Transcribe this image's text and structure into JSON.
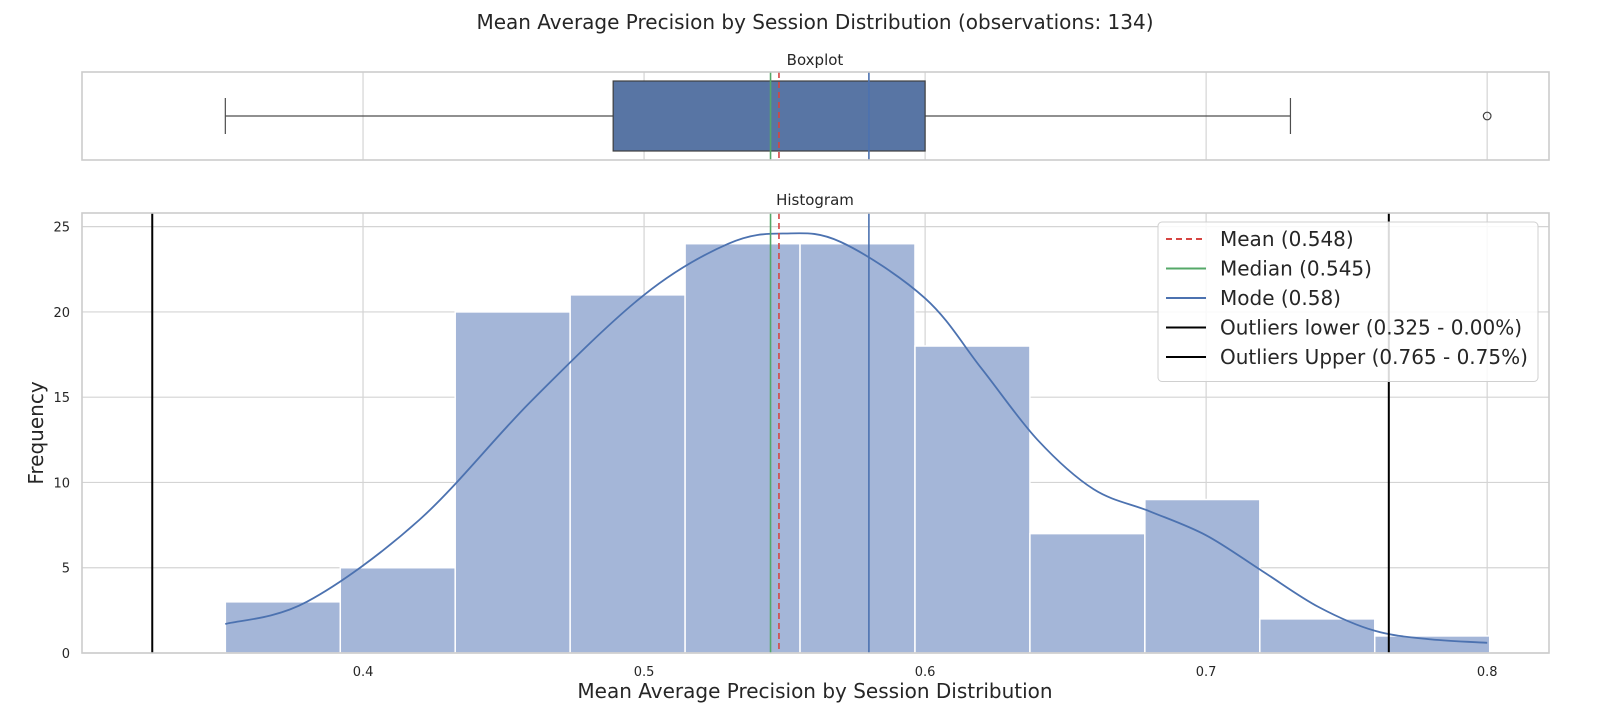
{
  "chart_data": [
    {
      "type": "boxplot",
      "title": "Boxplot",
      "orientation": "horizontal",
      "whisker_low": 0.351,
      "q1": 0.489,
      "median": 0.545,
      "q3": 0.6,
      "whisker_high": 0.73,
      "fliers": [
        0.8
      ],
      "mean": 0.548,
      "mode": 0.58,
      "xlim": [
        0.3,
        0.822
      ],
      "grid": true
    },
    {
      "type": "histogram",
      "title": "Histogram",
      "suptitle": "Mean Average Precision by Session Distribution (observations: 134)",
      "xlabel": "Mean Average Precision by Session Distribution",
      "ylabel": "Frequency",
      "xlim": [
        0.3,
        0.822
      ],
      "ylim": [
        0,
        25.8
      ],
      "x_ticks": [
        "0.4",
        "0.5",
        "0.6",
        "0.7",
        "0.8"
      ],
      "y_ticks": [
        "0",
        "5",
        "10",
        "15",
        "20",
        "25"
      ],
      "bin_edges": [
        0.351,
        0.3919,
        0.4328,
        0.4737,
        0.5146,
        0.5555,
        0.5964,
        0.6373,
        0.6782,
        0.7191,
        0.76,
        0.8009
      ],
      "values": [
        3,
        5,
        20,
        21,
        24,
        24,
        18,
        7,
        9,
        2,
        1
      ],
      "kde": {
        "x": [
          0.351,
          0.38,
          0.42,
          0.46,
          0.5,
          0.53,
          0.55,
          0.57,
          0.6,
          0.62,
          0.64,
          0.66,
          0.68,
          0.7,
          0.72,
          0.74,
          0.76,
          0.78,
          0.8
        ],
        "y": [
          1.7,
          3.0,
          7.8,
          14.8,
          21.0,
          24.0,
          24.6,
          24.1,
          20.8,
          16.7,
          12.5,
          9.6,
          8.3,
          6.9,
          4.8,
          2.7,
          1.3,
          0.8,
          0.6
        ]
      },
      "vlines": [
        {
          "label": "Mean (0.548)",
          "x": 0.548,
          "color": "#d64541",
          "style": "dashed"
        },
        {
          "label": "Median (0.545)",
          "x": 0.545,
          "color": "#55a868",
          "style": "solid"
        },
        {
          "label": "Mode (0.58)",
          "x": 0.58,
          "color": "#4c72b0",
          "style": "solid"
        },
        {
          "label": "Outliers lower (0.325 - 0.00%)",
          "x": 0.325,
          "color": "#000000",
          "style": "solid"
        },
        {
          "label": "Outliers Upper (0.765 - 0.75%)",
          "x": 0.765,
          "color": "#000000",
          "style": "solid"
        }
      ],
      "legend_position": "top-right",
      "grid": true,
      "colors": {
        "bar_fill": "#a4b6d8",
        "box_fill": "#5875a4",
        "kde": "#4c72b0",
        "grid": "#d4d4d4",
        "frame": "#cccccc"
      }
    }
  ]
}
